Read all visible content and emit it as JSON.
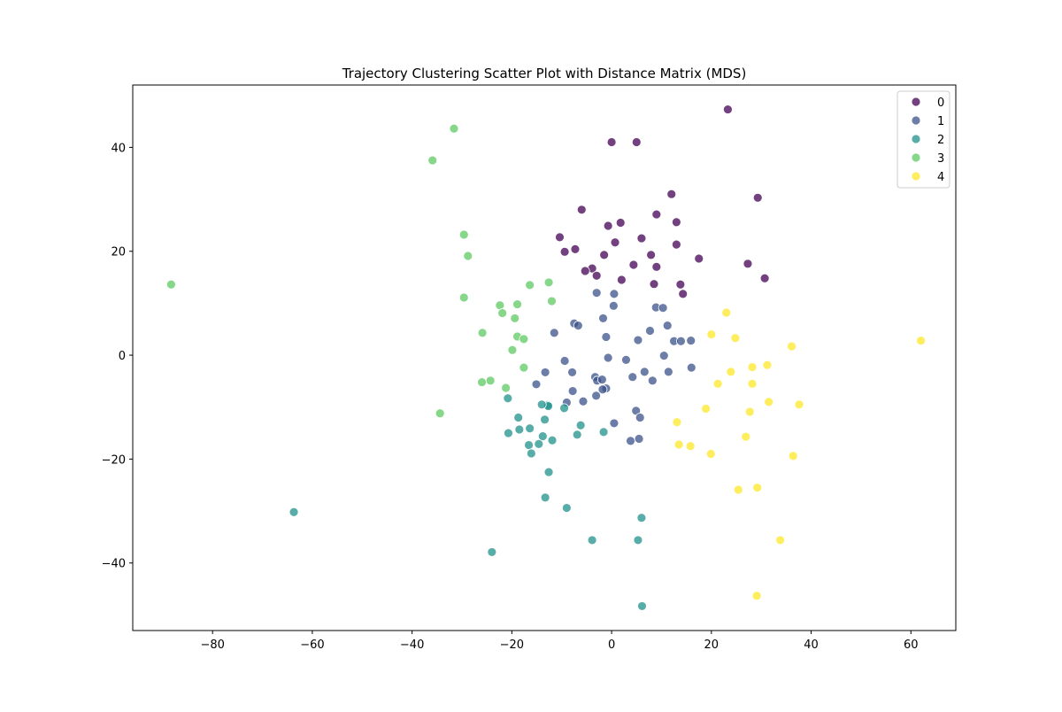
{
  "chart_data": {
    "type": "scatter",
    "title": "Trajectory Clustering Scatter Plot with Distance Matrix (MDS)",
    "xlabel": "",
    "ylabel": "",
    "xlim": [
      -96,
      69
    ],
    "ylim": [
      -53,
      52
    ],
    "xticks": [
      -80,
      -60,
      -40,
      -20,
      0,
      20,
      40,
      60
    ],
    "yticks": [
      -40,
      -20,
      0,
      20,
      40
    ],
    "grid": false,
    "legend_position": "top-right",
    "series": [
      {
        "name": "0",
        "color": "#440154",
        "points": [
          [
            23.3,
            47.3
          ],
          [
            0,
            41
          ],
          [
            5,
            41
          ],
          [
            12,
            31
          ],
          [
            29.3,
            30.3
          ],
          [
            -6,
            28
          ],
          [
            9,
            27.1
          ],
          [
            -0.7,
            24.9
          ],
          [
            1.8,
            25.5
          ],
          [
            13,
            25.6
          ],
          [
            -10.4,
            22.7
          ],
          [
            6,
            22.5
          ],
          [
            0.7,
            21.7
          ],
          [
            13,
            21.3
          ],
          [
            -9.4,
            19.9
          ],
          [
            -7.3,
            20.4
          ],
          [
            -1.5,
            19.3
          ],
          [
            7.9,
            19.3
          ],
          [
            17.5,
            18.6
          ],
          [
            4.4,
            17.4
          ],
          [
            9,
            17
          ],
          [
            27.3,
            17.6
          ],
          [
            -3.9,
            16.7
          ],
          [
            -5.3,
            16.2
          ],
          [
            -3,
            15.3
          ],
          [
            2,
            14.5
          ],
          [
            30.7,
            14.8
          ],
          [
            8.5,
            13.7
          ],
          [
            13.8,
            13.6
          ],
          [
            14.3,
            11.8
          ]
        ]
      },
      {
        "name": "1",
        "color": "#3b528b",
        "points": [
          [
            -3,
            12
          ],
          [
            0.5,
            11.8
          ],
          [
            0.4,
            9.5
          ],
          [
            8.9,
            9.2
          ],
          [
            10.3,
            9.1
          ],
          [
            -1.7,
            7.1
          ],
          [
            -7.5,
            6.1
          ],
          [
            -6.7,
            5.7
          ],
          [
            11.2,
            5.7
          ],
          [
            7.7,
            4.7
          ],
          [
            -11.5,
            4.3
          ],
          [
            -1.1,
            3.5
          ],
          [
            5.3,
            2.9
          ],
          [
            12.5,
            2.7
          ],
          [
            13.9,
            2.7
          ],
          [
            15.9,
            2.8
          ],
          [
            10.5,
            -0.1
          ],
          [
            -0.7,
            -0.5
          ],
          [
            -9.4,
            -1.1
          ],
          [
            2.9,
            -0.9
          ],
          [
            16,
            -2.4
          ],
          [
            -13.3,
            -3.3
          ],
          [
            -7.9,
            -3.3
          ],
          [
            6.6,
            -3.2
          ],
          [
            11.4,
            -3.2
          ],
          [
            -3.3,
            -4.2
          ],
          [
            4.2,
            -4.2
          ],
          [
            -2.9,
            -4.9
          ],
          [
            -1.9,
            -4.7
          ],
          [
            8.2,
            -4.9
          ],
          [
            -15.1,
            -5.6
          ],
          [
            -1.1,
            -6.4
          ],
          [
            -1.8,
            -6.6
          ],
          [
            -7.8,
            -6.9
          ],
          [
            -3.1,
            -7.8
          ],
          [
            -5.7,
            -8.9
          ],
          [
            -9,
            -9.1
          ],
          [
            4.9,
            -10.7
          ],
          [
            5.7,
            -12
          ],
          [
            0.5,
            -13.1
          ],
          [
            3.8,
            -16.5
          ],
          [
            5.5,
            -16.1
          ]
        ]
      },
      {
        "name": "2",
        "color": "#21918c",
        "points": [
          [
            -20.8,
            -8.3
          ],
          [
            -12.8,
            -9.6
          ],
          [
            -12.7,
            -9.8
          ],
          [
            -14,
            -9.5
          ],
          [
            -9.5,
            -10.2
          ],
          [
            -18.7,
            -12
          ],
          [
            -13.4,
            -12.4
          ],
          [
            -6.2,
            -13.5
          ],
          [
            -16.4,
            -14.1
          ],
          [
            -18.5,
            -14.3
          ],
          [
            -20.7,
            -15
          ],
          [
            -13.8,
            -15.6
          ],
          [
            -6.9,
            -15.3
          ],
          [
            -1.6,
            -14.8
          ],
          [
            -11.9,
            -16.4
          ],
          [
            -14.6,
            -17.1
          ],
          [
            -16.6,
            -17.3
          ],
          [
            -16.1,
            -18.9
          ],
          [
            -12.6,
            -22.5
          ],
          [
            -13.3,
            -27.4
          ],
          [
            -9,
            -29.4
          ],
          [
            -63.7,
            -30.2
          ],
          [
            6,
            -31.3
          ],
          [
            -3.9,
            -35.6
          ],
          [
            5.3,
            -35.6
          ],
          [
            -24,
            -37.9
          ],
          [
            6.1,
            -48.3
          ]
        ]
      },
      {
        "name": "3",
        "color": "#5ec962",
        "points": [
          [
            -31.6,
            43.6
          ],
          [
            -35.9,
            37.5
          ],
          [
            -29.6,
            23.2
          ],
          [
            -28.8,
            19.1
          ],
          [
            -88.3,
            13.6
          ],
          [
            -16.4,
            13.5
          ],
          [
            -12.6,
            14
          ],
          [
            -29.6,
            11.1
          ],
          [
            -12,
            10.4
          ],
          [
            -22.4,
            9.6
          ],
          [
            -18.9,
            9.8
          ],
          [
            -21.9,
            8.1
          ],
          [
            -19.4,
            7.1
          ],
          [
            -25.9,
            4.3
          ],
          [
            -18.9,
            3.6
          ],
          [
            -17.6,
            3.1
          ],
          [
            -19.9,
            1
          ],
          [
            -17.6,
            -2.4
          ],
          [
            -24.3,
            -4.9
          ],
          [
            -26,
            -5.2
          ],
          [
            -21.2,
            -6.3
          ],
          [
            -34.4,
            -11.2
          ]
        ]
      },
      {
        "name": "4",
        "color": "#fde725",
        "points": [
          [
            62,
            2.8
          ],
          [
            23,
            8.2
          ],
          [
            20,
            4
          ],
          [
            24.8,
            3.3
          ],
          [
            36.1,
            1.7
          ],
          [
            28.2,
            -2.3
          ],
          [
            31.2,
            -1.9
          ],
          [
            23.9,
            -3.2
          ],
          [
            21.3,
            -5.5
          ],
          [
            28.2,
            -5.5
          ],
          [
            31.5,
            -9
          ],
          [
            37.6,
            -9.5
          ],
          [
            18.9,
            -10.3
          ],
          [
            27.7,
            -10.9
          ],
          [
            13.1,
            -12.9
          ],
          [
            26.9,
            -15.7
          ],
          [
            13.5,
            -17.2
          ],
          [
            15.8,
            -17.5
          ],
          [
            19.9,
            -19
          ],
          [
            36.4,
            -19.4
          ],
          [
            29.2,
            -25.5
          ],
          [
            25.4,
            -25.9
          ],
          [
            33.8,
            -35.6
          ],
          [
            29.1,
            -46.3
          ]
        ]
      }
    ]
  }
}
